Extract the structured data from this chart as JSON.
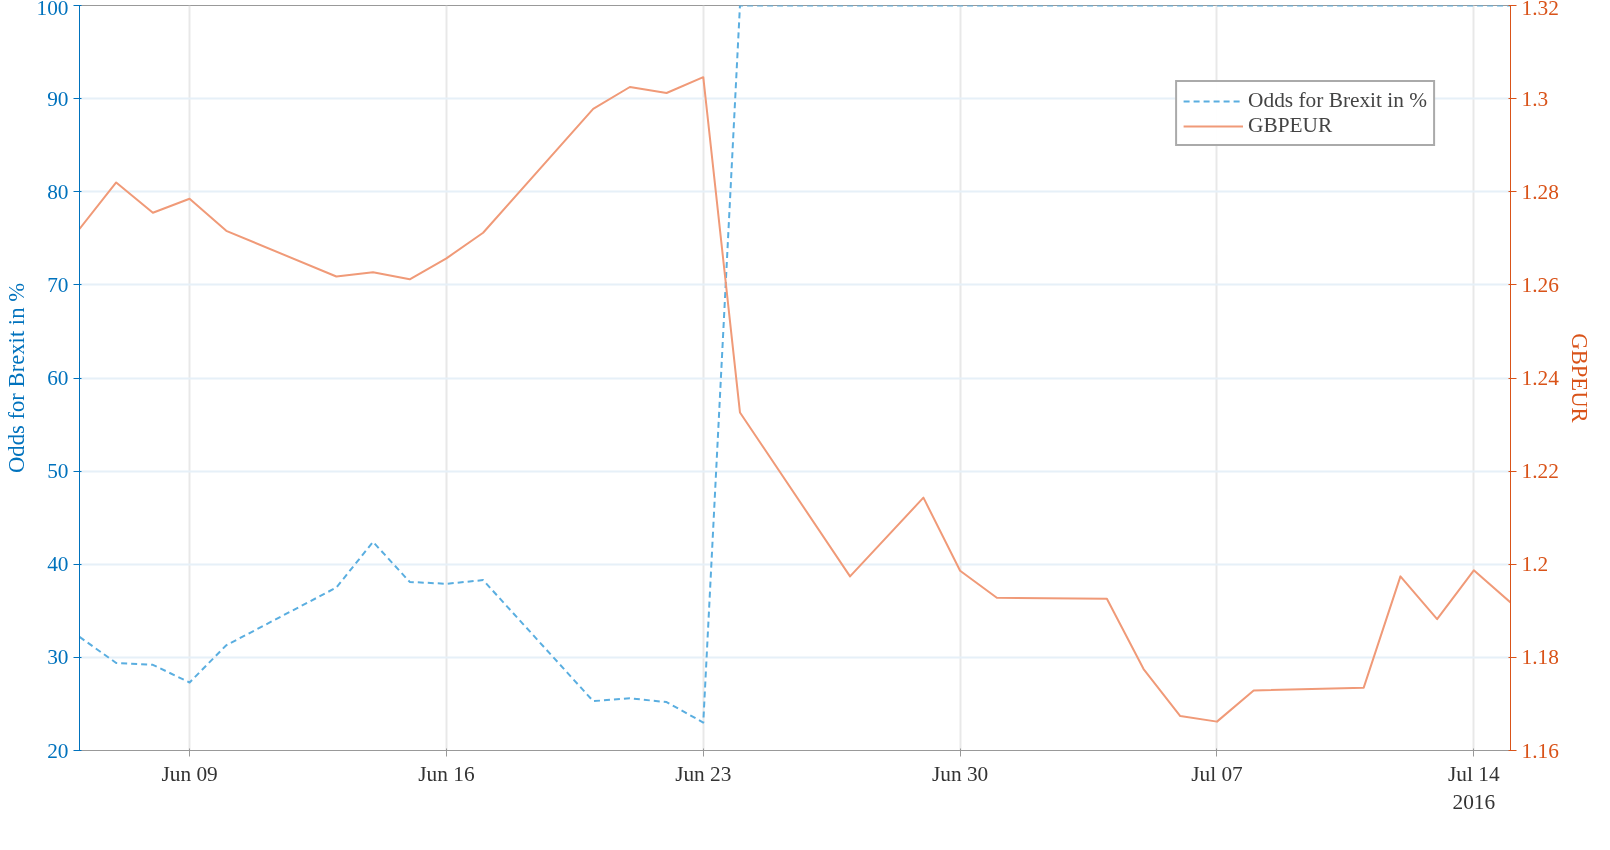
{
  "chart_data": {
    "type": "line",
    "ylabel": "Odds for Brexit in %",
    "y2label": "GBPEUR",
    "series": [
      {
        "name": "Odds for Brexit in %",
        "color": "#5aaee0",
        "line_style": "dashed",
        "x": [
          "2016-06-06",
          "2016-06-07",
          "2016-06-08",
          "2016-06-09",
          "2016-06-10",
          "2016-06-13",
          "2016-06-14",
          "2016-06-15",
          "2016-06-16",
          "2016-06-17",
          "2016-06-20",
          "2016-06-21",
          "2016-06-22",
          "2016-06-23",
          "2016-06-24",
          "2016-07-15"
        ],
        "values": [
          32.2,
          29.4,
          29.2,
          27.3,
          31.3,
          37.5,
          42.4,
          38.1,
          37.9,
          38.3,
          25.3,
          25.6,
          25.2,
          23.0,
          100,
          100
        ]
      },
      {
        "name": "GBPEUR",
        "color": "#f09a78",
        "line_style": "solid",
        "axis": "y2",
        "x": [
          "2016-06-06",
          "2016-06-07",
          "2016-06-08",
          "2016-06-09",
          "2016-06-10",
          "2016-06-13",
          "2016-06-14",
          "2016-06-15",
          "2016-06-16",
          "2016-06-17",
          "2016-06-20",
          "2016-06-21",
          "2016-06-22",
          "2016-06-23",
          "2016-06-24",
          "2016-06-27",
          "2016-06-29",
          "2016-06-30",
          "2016-07-01",
          "2016-07-04",
          "2016-07-05",
          "2016-07-06",
          "2016-07-07",
          "2016-07-08",
          "2016-07-11",
          "2016-07-12",
          "2016-07-13",
          "2016-07-14",
          "2016-07-15"
        ],
        "values": [
          1.272,
          1.282,
          1.2755,
          1.2785,
          1.2716,
          1.2618,
          1.2627,
          1.2612,
          1.2657,
          1.2712,
          1.2978,
          1.3025,
          1.3012,
          1.3046,
          1.2326,
          1.1974,
          1.2143,
          1.1986,
          1.1928,
          1.1926,
          1.1775,
          1.1674,
          1.1662,
          1.1729,
          1.1735,
          1.1974,
          1.1882,
          1.1987,
          1.1918
        ]
      }
    ],
    "xlim": [
      "2016-06-06",
      "2016-07-15"
    ],
    "xticks": [
      {
        "value": "2016-06-09",
        "label": "Jun 09"
      },
      {
        "value": "2016-06-16",
        "label": "Jun 16"
      },
      {
        "value": "2016-06-23",
        "label": "Jun 23"
      },
      {
        "value": "2016-06-30",
        "label": "Jun 30"
      },
      {
        "value": "2016-07-07",
        "label": "Jul 07"
      },
      {
        "value": "2016-07-14",
        "label": "Jul 14\n2016"
      }
    ],
    "ylim": [
      20,
      100
    ],
    "yticks": [
      20,
      30,
      40,
      50,
      60,
      70,
      80,
      90,
      100
    ],
    "y2lim": [
      1.16,
      1.32
    ],
    "y2ticks": [
      1.16,
      1.18,
      1.2,
      1.22,
      1.24,
      1.26,
      1.28,
      1.3,
      1.32
    ],
    "grid": true,
    "legend": "top right"
  }
}
